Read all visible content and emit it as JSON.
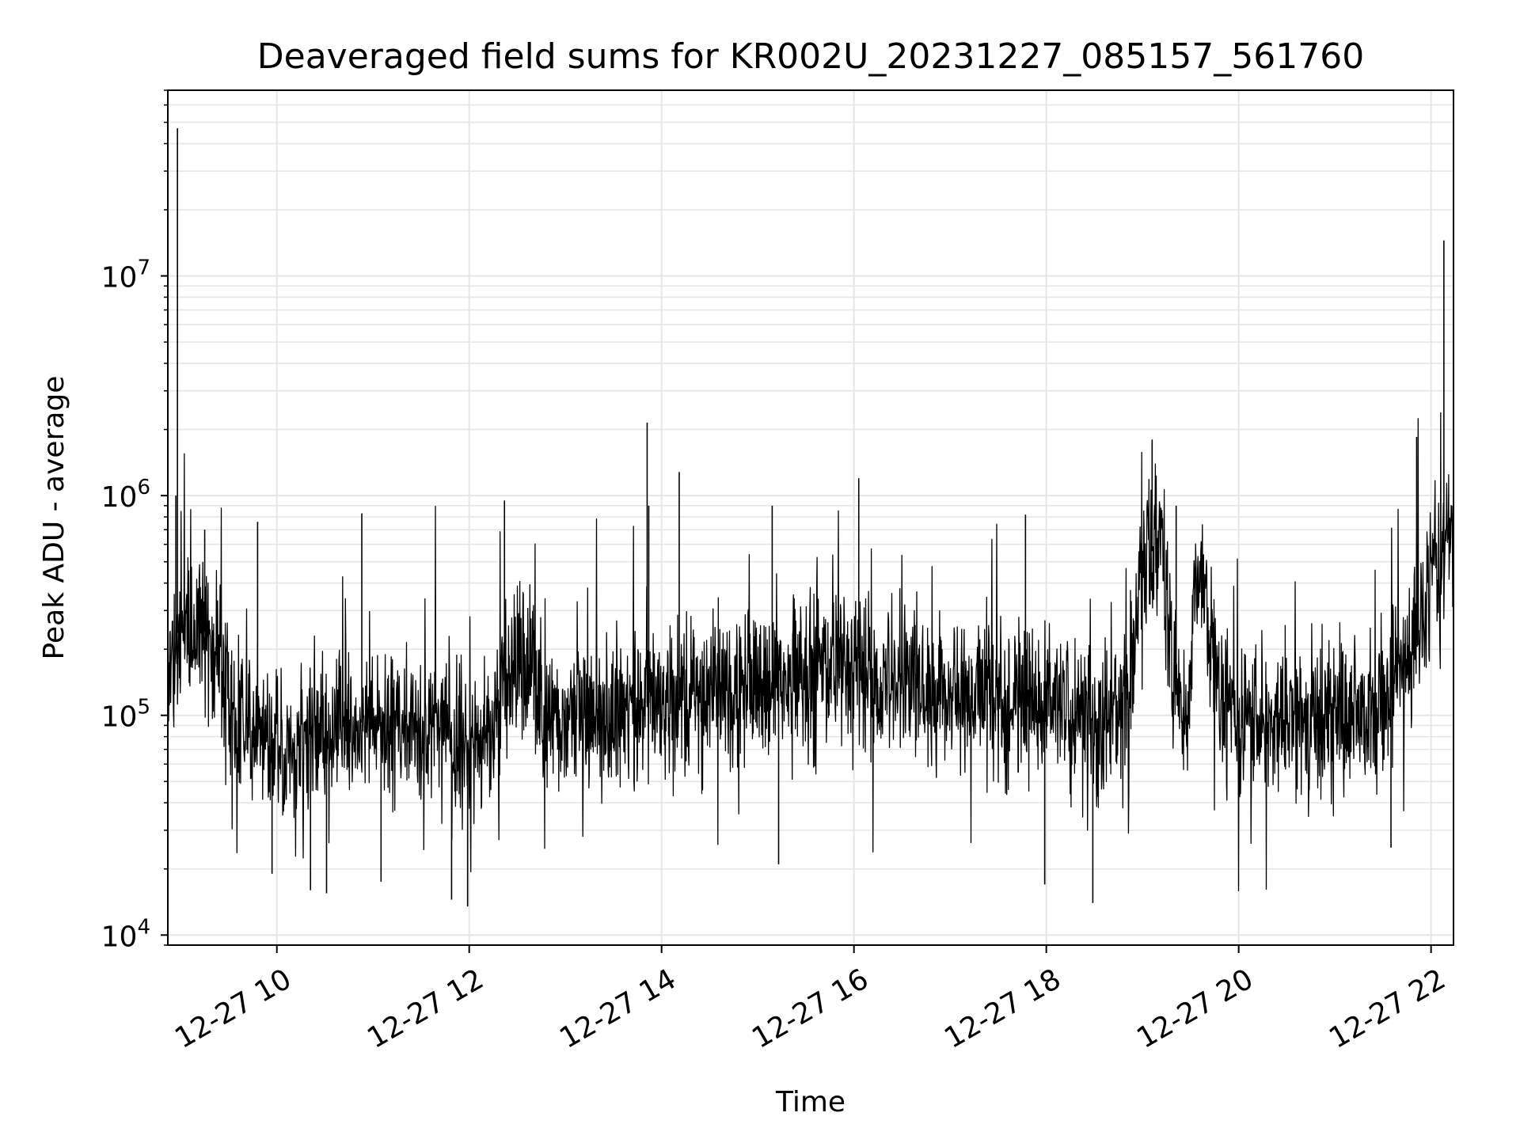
{
  "chart_data": {
    "type": "line",
    "title": "Deaveraged field sums for KR002U_20231227_085157_561760",
    "xlabel": "Time",
    "ylabel": "Peak ADU - average",
    "yscale": "log",
    "grid": true,
    "line_color": "#000000",
    "grid_color": "#e6e6e6",
    "xlim": [
      "2023-12-27T08:52",
      "2023-12-27T22:14"
    ],
    "ylim": [
      9000,
      70000000
    ],
    "x_ticks": [
      {
        "value": "2023-12-27T10:00",
        "label": "12-27 10"
      },
      {
        "value": "2023-12-27T12:00",
        "label": "12-27 12"
      },
      {
        "value": "2023-12-27T14:00",
        "label": "12-27 14"
      },
      {
        "value": "2023-12-27T16:00",
        "label": "12-27 16"
      },
      {
        "value": "2023-12-27T18:00",
        "label": "12-27 18"
      },
      {
        "value": "2023-12-27T20:00",
        "label": "12-27 20"
      },
      {
        "value": "2023-12-27T22:00",
        "label": "12-27 22"
      }
    ],
    "y_ticks": [
      {
        "value": 10000,
        "base": "10",
        "exp": "4"
      },
      {
        "value": 100000,
        "base": "10",
        "exp": "5"
      },
      {
        "value": 1000000,
        "base": "10",
        "exp": "6"
      },
      {
        "value": 10000000,
        "base": "10",
        "exp": "7"
      }
    ],
    "series": [
      {
        "color": "#000000",
        "baseline": [
          [
            "2023-12-27T08:52",
            180000
          ],
          [
            "2023-12-27T09:00",
            260000
          ],
          [
            "2023-12-27T09:15",
            240000
          ],
          [
            "2023-12-27T09:25",
            180000
          ],
          [
            "2023-12-27T09:30",
            110000
          ],
          [
            "2023-12-27T10:00",
            75000
          ],
          [
            "2023-12-27T10:30",
            85000
          ],
          [
            "2023-12-27T11:00",
            95000
          ],
          [
            "2023-12-27T11:30",
            85000
          ],
          [
            "2023-12-27T12:00",
            75000
          ],
          [
            "2023-12-27T12:15",
            95000
          ],
          [
            "2023-12-27T12:25",
            170000
          ],
          [
            "2023-12-27T12:40",
            170000
          ],
          [
            "2023-12-27T12:45",
            95000
          ],
          [
            "2023-12-27T13:30",
            100000
          ],
          [
            "2023-12-27T14:00",
            120000
          ],
          [
            "2023-12-27T15:00",
            135000
          ],
          [
            "2023-12-27T15:45",
            150000
          ],
          [
            "2023-12-27T16:00",
            190000
          ],
          [
            "2023-12-27T16:15",
            150000
          ],
          [
            "2023-12-27T17:00",
            125000
          ],
          [
            "2023-12-27T18:00",
            120000
          ],
          [
            "2023-12-27T18:30",
            95000
          ],
          [
            "2023-12-27T18:50",
            130000
          ],
          [
            "2023-12-27T19:00",
            480000
          ],
          [
            "2023-12-27T19:12",
            650000
          ],
          [
            "2023-12-27T19:20",
            160000
          ],
          [
            "2023-12-27T19:28",
            80000
          ],
          [
            "2023-12-27T19:33",
            420000
          ],
          [
            "2023-12-27T19:40",
            380000
          ],
          [
            "2023-12-27T19:45",
            150000
          ],
          [
            "2023-12-27T20:00",
            95000
          ],
          [
            "2023-12-27T21:00",
            95000
          ],
          [
            "2023-12-27T21:30",
            110000
          ],
          [
            "2023-12-27T21:40",
            180000
          ],
          [
            "2023-12-27T22:00",
            380000
          ],
          [
            "2023-12-27T22:14",
            620000
          ]
        ],
        "peaks": [
          [
            "2023-12-27T08:58",
            47000000
          ],
          [
            "2023-12-27T08:57",
            1000000
          ],
          [
            "2023-12-27T09:15",
            700000
          ],
          [
            "2023-12-27T09:48",
            760000
          ],
          [
            "2023-12-27T10:53",
            830000
          ],
          [
            "2023-12-27T12:22",
            950000
          ],
          [
            "2023-12-27T13:51",
            2150000
          ],
          [
            "2023-12-27T13:52",
            900000
          ],
          [
            "2023-12-27T14:11",
            1280000
          ],
          [
            "2023-12-27T15:09",
            900000
          ],
          [
            "2023-12-27T16:03",
            1200000
          ],
          [
            "2023-12-27T17:47",
            820000
          ],
          [
            "2023-12-27T19:06",
            1800000
          ],
          [
            "2023-12-27T19:21",
            900000
          ],
          [
            "2023-12-27T21:51",
            1850000
          ],
          [
            "2023-12-27T22:08",
            14500000
          ],
          [
            "2023-12-27T22:14",
            1200000
          ]
        ],
        "troughs": [
          [
            "2023-12-27T09:57",
            19000
          ],
          [
            "2023-12-27T10:21",
            16000
          ],
          [
            "2023-12-27T10:31",
            15500
          ],
          [
            "2023-12-27T11:05",
            17500
          ],
          [
            "2023-12-27T11:49",
            14500
          ],
          [
            "2023-12-27T11:59",
            13500
          ],
          [
            "2023-12-27T15:13",
            21000
          ],
          [
            "2023-12-27T17:59",
            17000
          ],
          [
            "2023-12-27T18:29",
            14000
          ],
          [
            "2023-12-27T21:35",
            25000
          ]
        ]
      }
    ]
  }
}
